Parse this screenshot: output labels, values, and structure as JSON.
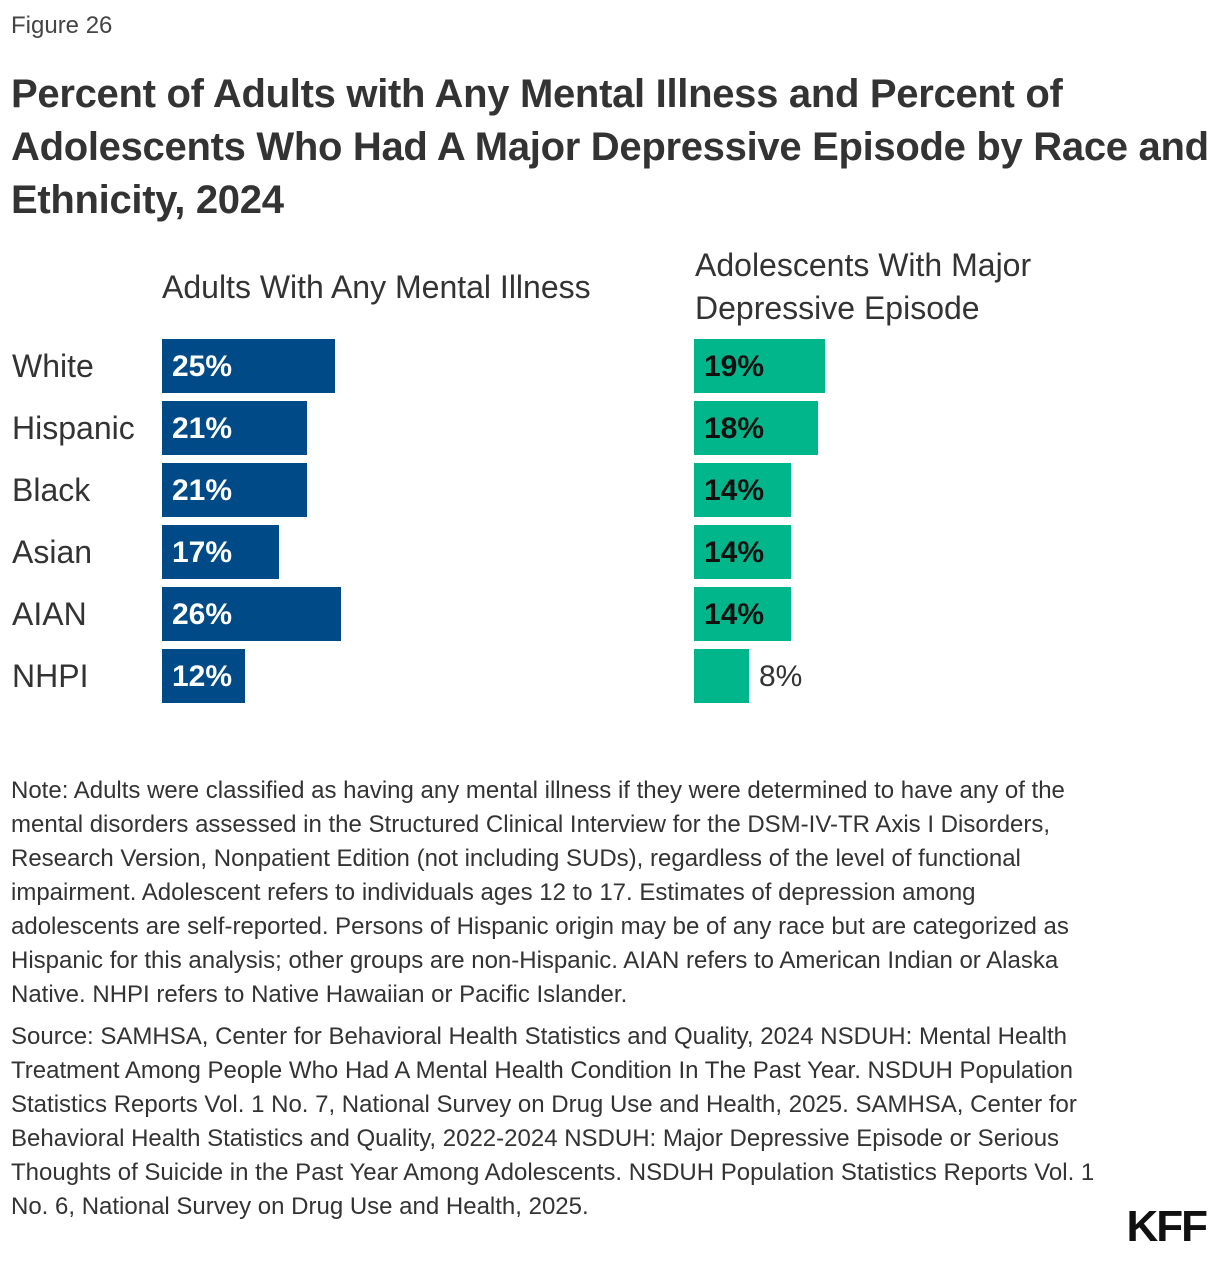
{
  "figure_label": "Figure 26",
  "chart_data": [
    {
      "type": "bar",
      "orientation": "horizontal",
      "title": "Adults With Any Mental Illness",
      "categories": [
        "White",
        "Hispanic",
        "Black",
        "Asian",
        "AIAN",
        "NHPI"
      ],
      "values": [
        25,
        21,
        21,
        17,
        26,
        12
      ],
      "labels": [
        "25%",
        "21%",
        "21%",
        "17%",
        "26%",
        "12%"
      ],
      "color": "#004b87",
      "label_color": "#ffffff"
    },
    {
      "type": "bar",
      "orientation": "horizontal",
      "title": "Adolescents With Major Depressive Episode",
      "categories": [
        "White",
        "Hispanic",
        "Black",
        "Asian",
        "AIAN",
        "NHPI"
      ],
      "values": [
        19,
        18,
        14,
        14,
        14,
        8
      ],
      "labels": [
        "19%",
        "18%",
        "14%",
        "14%",
        "14%",
        "8%"
      ],
      "color": "#00b68a",
      "label_color": "#111111"
    }
  ],
  "title": "Percent of Adults with Any Mental Illness and Percent of Adolescents Who Had A Major Depressive Episode by Race and Ethnicity, 2024",
  "note": "Note: Adults were classified as having any mental illness if they were determined to have any of the mental disorders assessed in the Structured Clinical Interview for the DSM-IV-TR Axis I Disorders, Research Version, Nonpatient Edition (not including SUDs), regardless of the level of functional impairment. Adolescent refers to individuals ages 12 to 17. Estimates of depression among adolescents are self-reported. Persons of Hispanic origin may be of any race but are categorized as Hispanic for this analysis; other groups are non-Hispanic. AIAN refers to American Indian or Alaska Native. NHPI refers to Native Hawaiian or Pacific Islander.",
  "source": "Source: SAMHSA, Center for Behavioral Health Statistics and Quality, 2024 NSDUH: Mental Health Treatment Among People Who Had A Mental Health Condition In The Past Year. NSDUH Population Statistics Reports Vol. 1 No. 7, National Survey on Drug Use and Health, 2025. SAMHSA, Center for Behavioral Health Statistics and Quality, 2022-2024 NSDUH: Major Depressive Episode or Serious Thoughts of Suicide in the Past Year Among Adolescents. NSDUH Population Statistics Reports Vol. 1 No. 6, National Survey on Drug Use and Health, 2025.",
  "logo": "KFF"
}
